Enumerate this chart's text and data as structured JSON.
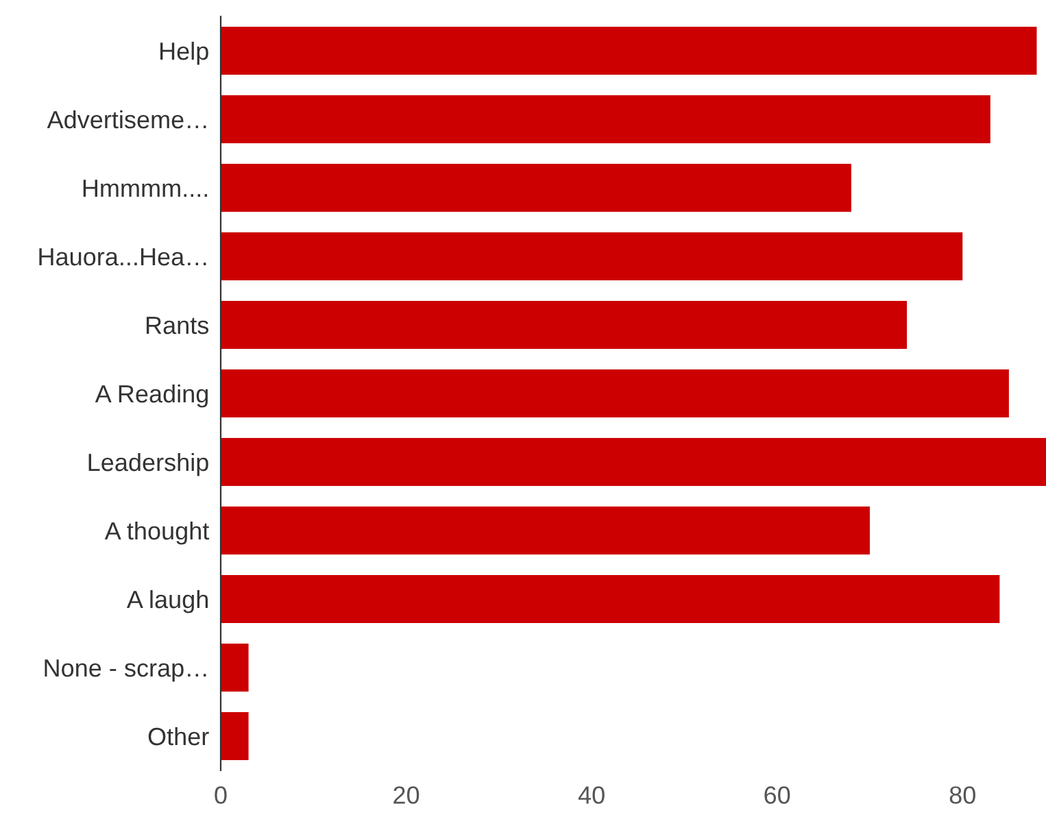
{
  "chart_data": {
    "type": "bar",
    "orientation": "horizontal",
    "categories": [
      "Help",
      "Advertiseme…",
      "Hmmmm....",
      "Hauora...Hea…",
      "Rants",
      "A Reading",
      "Leadership",
      "A thought",
      "A laugh",
      "None - scrap…",
      "Other"
    ],
    "values": [
      88,
      83,
      68,
      80,
      74,
      85,
      89,
      70,
      84,
      3,
      3
    ],
    "color": "#cc0000",
    "xlim": [
      0,
      89
    ],
    "xticks": [
      0,
      20,
      40,
      60,
      80
    ],
    "grid": false
  }
}
